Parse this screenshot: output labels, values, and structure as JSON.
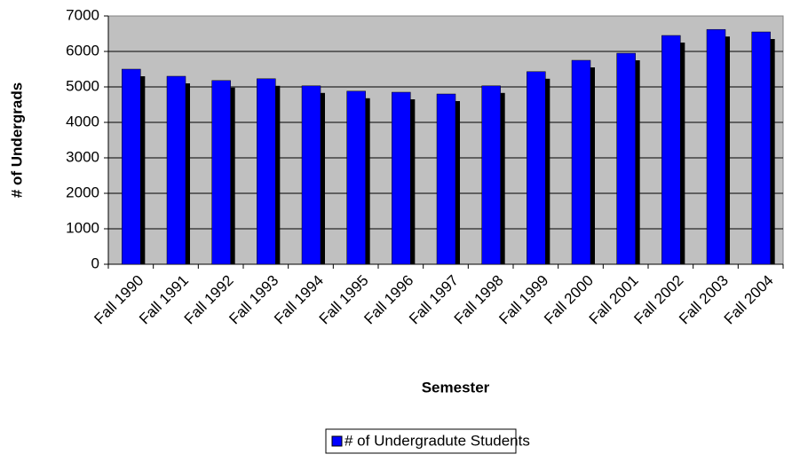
{
  "chart_data": {
    "type": "bar",
    "x_label": "Semester",
    "y_label": "# of Undergrads",
    "categories": [
      "Fall 1990",
      "Fall 1991",
      "Fall 1992",
      "Fall 1993",
      "Fall 1994",
      "Fall 1995",
      "Fall 1996",
      "Fall 1997",
      "Fall 1998",
      "Fall 1999",
      "Fall 2000",
      "Fall 2001",
      "Fall 2002",
      "Fall 2003",
      "Fall 2004"
    ],
    "series": [
      {
        "name": "# of Undergradute Students",
        "color": "#0000ff",
        "values": [
          5500,
          5300,
          5180,
          5230,
          5030,
          4880,
          4850,
          4800,
          5030,
          5430,
          5750,
          5950,
          6450,
          6620,
          6550
        ]
      }
    ],
    "ylim": [
      0,
      7000
    ],
    "yticks": [
      0,
      1000,
      2000,
      3000,
      4000,
      5000,
      6000,
      7000
    ],
    "grid": true,
    "legend": "bottom"
  }
}
